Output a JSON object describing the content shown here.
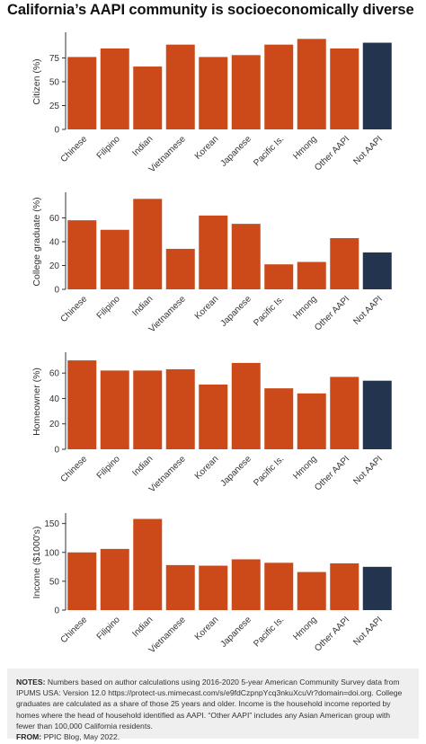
{
  "title": "California’s AAPI community is socioeconomically diverse",
  "colors": {
    "aapi": "#cc4a1a",
    "not_aapi": "#23344e",
    "axis": "#333333"
  },
  "chart_data": [
    {
      "type": "bar",
      "ylabel": "Citizen (%)",
      "ylim": [
        0,
        100
      ],
      "yticks": [
        "0",
        "25",
        "50",
        "75"
      ],
      "yticks_values": [
        0,
        25,
        50,
        75
      ],
      "categories": [
        "Chinese",
        "Filipino",
        "Indian",
        "Vietnamese",
        "Korean",
        "Japanese",
        "Pacific Is.",
        "Hmong",
        "Other AAPI",
        "Not AAPI"
      ],
      "values": [
        76,
        85,
        66,
        89,
        76,
        78,
        89,
        95,
        85,
        91
      ]
    },
    {
      "type": "bar",
      "ylabel": "College graduate (%)",
      "ylim": [
        0,
        80
      ],
      "yticks": [
        "0",
        "20",
        "40",
        "60"
      ],
      "yticks_values": [
        0,
        20,
        40,
        60
      ],
      "categories": [
        "Chinese",
        "Filipino",
        "Indian",
        "Vietnamese",
        "Korean",
        "Japanese",
        "Pacific Is.",
        "Hmong",
        "Other AAPI",
        "Not AAPI"
      ],
      "values": [
        58,
        50,
        76,
        34,
        62,
        55,
        21,
        23,
        43,
        31
      ]
    },
    {
      "type": "bar",
      "ylabel": "Homeowner (%)",
      "ylim": [
        0,
        75
      ],
      "yticks": [
        "0",
        "20",
        "40",
        "60"
      ],
      "yticks_values": [
        0,
        20,
        40,
        60
      ],
      "categories": [
        "Chinese",
        "Filipino",
        "Indian",
        "Vietnamese",
        "Korean",
        "Japanese",
        "Pacific Is.",
        "Hmong",
        "Other AAPI",
        "Not AAPI"
      ],
      "values": [
        70,
        62,
        62,
        63,
        51,
        68,
        48,
        44,
        57,
        54
      ]
    },
    {
      "type": "bar",
      "ylabel": "Income ($1000's)",
      "ylim": [
        0,
        165
      ],
      "yticks": [
        "0",
        "50",
        "100",
        "150"
      ],
      "yticks_values": [
        0,
        50,
        100,
        150
      ],
      "categories": [
        "Chinese",
        "Filipino",
        "Indian",
        "Vietnamese",
        "Korean",
        "Japanese",
        "Pacific Is.",
        "Hmong",
        "Other AAPI",
        "Not AAPI"
      ],
      "values": [
        100,
        106,
        158,
        78,
        77,
        88,
        82,
        66,
        81,
        75
      ]
    }
  ],
  "notes": {
    "label": "NOTES:",
    "text": "Numbers based on author calculations using 2016-2020 5-year American Community Survey data from IPUMS USA: Version 12.0 https://protect-us.mimecast.com/s/e9fdCzpnpYcq3nkuXcuVr?domain=doi.org. College graduates are calculated as a share of those 25 years and older. Income is the household income reported by homes where the head of household identified as AAPI. “Other AAPI” includes any Asian American group with fewer than 100,000 California residents.",
    "from_label": "FROM:",
    "from_text": "PPIC Blog, May 2022."
  }
}
